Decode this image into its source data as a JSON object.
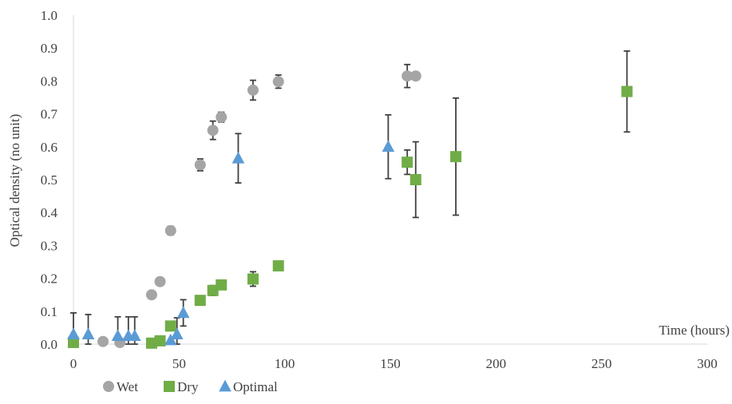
{
  "chart_data": {
    "type": "scatter",
    "title": "",
    "xlabel": "Time (hours)",
    "ylabel": "Optical density (no unit)",
    "xlim": [
      0,
      300
    ],
    "ylim": [
      0,
      1.0
    ],
    "x_ticks": [
      "0",
      "50",
      "100",
      "150",
      "200",
      "250",
      "300"
    ],
    "y_ticks": [
      "0.0",
      "0.1",
      "0.2",
      "0.3",
      "0.4",
      "0.5",
      "0.6",
      "0.7",
      "0.8",
      "0.9",
      "1.0"
    ],
    "grid": false,
    "legend_position": "bottom-left",
    "series": [
      {
        "name": "Wet",
        "marker": "circle",
        "color": "#A5A5A5",
        "points": [
          {
            "x": 14,
            "y": 0.008,
            "err": 0
          },
          {
            "x": 22,
            "y": 0.005,
            "err": 0
          },
          {
            "x": 37,
            "y": 0.15,
            "err": 0
          },
          {
            "x": 41,
            "y": 0.19,
            "err": 0
          },
          {
            "x": 46,
            "y": 0.345,
            "err": 0.013
          },
          {
            "x": 60,
            "y": 0.545,
            "err": 0.018
          },
          {
            "x": 66,
            "y": 0.65,
            "err": 0.028
          },
          {
            "x": 70,
            "y": 0.69,
            "err": 0.015
          },
          {
            "x": 85,
            "y": 0.772,
            "err": 0.03
          },
          {
            "x": 97,
            "y": 0.798,
            "err": 0.02
          },
          {
            "x": 158,
            "y": 0.815,
            "err": 0.035
          },
          {
            "x": 162,
            "y": 0.815,
            "err": 0.012
          }
        ]
      },
      {
        "name": "Dry",
        "marker": "square",
        "color": "#70AD47",
        "points": [
          {
            "x": 0,
            "y": 0.005,
            "err": 0
          },
          {
            "x": 37,
            "y": 0.003,
            "err": 0
          },
          {
            "x": 41,
            "y": 0.01,
            "err": 0
          },
          {
            "x": 46,
            "y": 0.055,
            "err": 0
          },
          {
            "x": 60,
            "y": 0.133,
            "err": 0.01
          },
          {
            "x": 66,
            "y": 0.163,
            "err": 0.015
          },
          {
            "x": 70,
            "y": 0.18,
            "err": 0.007
          },
          {
            "x": 85,
            "y": 0.198,
            "err": 0.022
          },
          {
            "x": 97,
            "y": 0.238,
            "err": 0
          },
          {
            "x": 158,
            "y": 0.553,
            "err": 0.037
          },
          {
            "x": 162,
            "y": 0.5,
            "err": 0.115
          },
          {
            "x": 181,
            "y": 0.57,
            "err": 0.178
          },
          {
            "x": 262,
            "y": 0.768,
            "err": 0.123
          }
        ]
      },
      {
        "name": "Optimal",
        "marker": "triangle",
        "color": "#5B9BD5",
        "points": [
          {
            "x": 0,
            "y": 0.03,
            "err": 0.065
          },
          {
            "x": 7,
            "y": 0.03,
            "err": 0.06
          },
          {
            "x": 21,
            "y": 0.025,
            "err": 0.058
          },
          {
            "x": 26,
            "y": 0.025,
            "err": 0.058
          },
          {
            "x": 29,
            "y": 0.025,
            "err": 0.058
          },
          {
            "x": 46,
            "y": 0.012,
            "err": 0
          },
          {
            "x": 49,
            "y": 0.03,
            "err": 0.05
          },
          {
            "x": 52,
            "y": 0.095,
            "err": 0.04
          },
          {
            "x": 78,
            "y": 0.565,
            "err": 0.075
          },
          {
            "x": 149,
            "y": 0.6,
            "err": 0.097
          }
        ]
      }
    ]
  }
}
